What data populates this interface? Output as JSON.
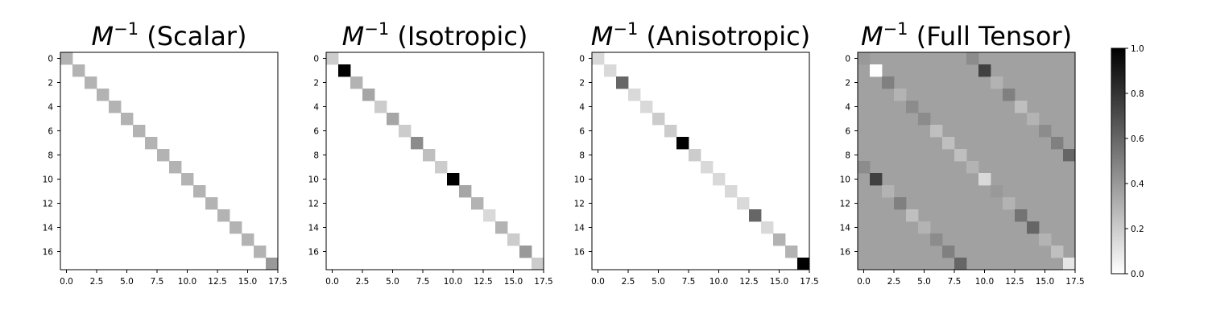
{
  "chart_data": [
    {
      "type": "heatmap",
      "title_prefix": "M",
      "title_superscript": "−1",
      "title_suffix": " (Scalar)",
      "matrix_size": 18,
      "value_range": [
        0,
        1
      ],
      "x_ticks": [
        "0.0",
        "2.5",
        "5.0",
        "7.5",
        "10.0",
        "12.5",
        "15.0",
        "17.5"
      ],
      "y_ticks": [
        "0",
        "2",
        "4",
        "6",
        "8",
        "10",
        "12",
        "14",
        "16"
      ],
      "off_diagonal": 0.0,
      "diagonal": [
        0.3,
        0.3,
        0.3,
        0.3,
        0.3,
        0.3,
        0.3,
        0.3,
        0.3,
        0.3,
        0.3,
        0.3,
        0.3,
        0.3,
        0.3,
        0.3,
        0.3,
        0.4
      ]
    },
    {
      "type": "heatmap",
      "title_prefix": "M",
      "title_superscript": "−1",
      "title_suffix": " (Isotropic)",
      "matrix_size": 18,
      "value_range": [
        0,
        1
      ],
      "x_ticks": [
        "0.0",
        "2.5",
        "5.0",
        "7.5",
        "10.0",
        "12.5",
        "15.0",
        "17.5"
      ],
      "y_ticks": [
        "0",
        "2",
        "4",
        "6",
        "8",
        "10",
        "12",
        "14",
        "16"
      ],
      "off_diagonal": 0.0,
      "diagonal": [
        0.2,
        1.0,
        0.3,
        0.35,
        0.2,
        0.35,
        0.2,
        0.45,
        0.25,
        0.2,
        1.0,
        0.35,
        0.3,
        0.15,
        0.3,
        0.2,
        0.4,
        0.2
      ]
    },
    {
      "type": "heatmap",
      "title_prefix": "M",
      "title_superscript": "−1",
      "title_suffix": " (Anisotropic)",
      "matrix_size": 18,
      "value_range": [
        0,
        1
      ],
      "x_ticks": [
        "0.0",
        "2.5",
        "5.0",
        "7.5",
        "10.0",
        "12.5",
        "15.0",
        "17.5"
      ],
      "y_ticks": [
        "0",
        "2",
        "4",
        "6",
        "8",
        "10",
        "12",
        "14",
        "16"
      ],
      "off_diagonal": 0.0,
      "diagonal": [
        0.15,
        0.15,
        0.6,
        0.15,
        0.15,
        0.2,
        0.2,
        1.0,
        0.2,
        0.15,
        0.15,
        0.15,
        0.15,
        0.6,
        0.15,
        0.3,
        0.3,
        1.0
      ]
    },
    {
      "type": "heatmap",
      "title_prefix": "M",
      "title_superscript": "−1",
      "title_suffix": " (Full Tensor)",
      "matrix_size": 18,
      "value_range": [
        0,
        1
      ],
      "x_ticks": [
        "0.0",
        "2.5",
        "5.0",
        "7.5",
        "10.0",
        "12.5",
        "15.0",
        "17.5"
      ],
      "y_ticks": [
        "0",
        "2",
        "4",
        "6",
        "8",
        "10",
        "12",
        "14",
        "16"
      ],
      "background_value": 0.37,
      "cells": [
        [
          0,
          0,
          0.4
        ],
        [
          0,
          9,
          0.45
        ],
        [
          1,
          1,
          0.0
        ],
        [
          1,
          10,
          0.75
        ],
        [
          2,
          2,
          0.5
        ],
        [
          2,
          11,
          0.3
        ],
        [
          3,
          3,
          0.3
        ],
        [
          3,
          12,
          0.5
        ],
        [
          4,
          4,
          0.45
        ],
        [
          4,
          13,
          0.25
        ],
        [
          5,
          5,
          0.45
        ],
        [
          5,
          14,
          0.3
        ],
        [
          6,
          6,
          0.25
        ],
        [
          6,
          15,
          0.45
        ],
        [
          7,
          7,
          0.25
        ],
        [
          7,
          16,
          0.5
        ],
        [
          8,
          8,
          0.25
        ],
        [
          8,
          17,
          0.6
        ],
        [
          9,
          0,
          0.45
        ],
        [
          9,
          9,
          0.3
        ],
        [
          10,
          1,
          0.75
        ],
        [
          10,
          10,
          0.15
        ],
        [
          11,
          2,
          0.3
        ],
        [
          11,
          11,
          0.4
        ],
        [
          12,
          3,
          0.5
        ],
        [
          12,
          12,
          0.3
        ],
        [
          13,
          4,
          0.25
        ],
        [
          13,
          13,
          0.55
        ],
        [
          14,
          5,
          0.3
        ],
        [
          14,
          14,
          0.6
        ],
        [
          15,
          6,
          0.45
        ],
        [
          15,
          15,
          0.3
        ],
        [
          16,
          7,
          0.5
        ],
        [
          16,
          16,
          0.25
        ],
        [
          17,
          8,
          0.6
        ],
        [
          17,
          17,
          0.1
        ]
      ]
    }
  ],
  "colorbar": {
    "ticks": [
      "0.0",
      "0.2",
      "0.4",
      "0.6",
      "0.8",
      "1.0"
    ],
    "range": [
      0,
      1
    ],
    "colormap": "gray_r"
  }
}
